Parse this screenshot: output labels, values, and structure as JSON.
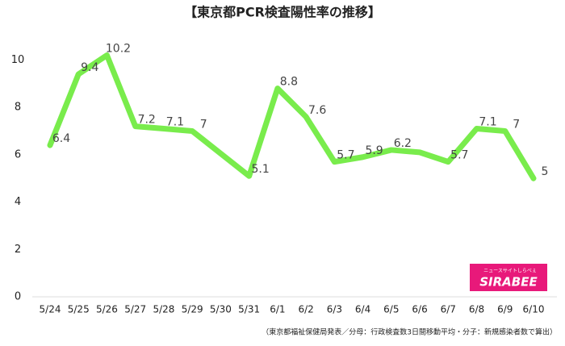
{
  "chart_data": {
    "type": "line",
    "title": "【東京都PCR検査陽性率の推移】",
    "categories": [
      "5/24",
      "5/25",
      "5/26",
      "5/27",
      "5/28",
      "5/29",
      "5/30",
      "5/31",
      "6/1",
      "6/2",
      "6/3",
      "6/4",
      "6/5",
      "6/6",
      "6/7",
      "6/8",
      "6/9",
      "6/10"
    ],
    "series": [
      {
        "name": "PCR検査陽性率",
        "color": "#79ec4c",
        "values": [
          6.4,
          9.4,
          10.2,
          7.2,
          7.1,
          7,
          6.05,
          5.1,
          8.8,
          7.6,
          5.7,
          5.9,
          6.2,
          6.1,
          5.7,
          7.1,
          7,
          5
        ],
        "value_labels": [
          "6.4",
          "9.4",
          "10.2",
          "7.2",
          "7.1",
          "7",
          null,
          "5.1",
          "8.8",
          "7.6",
          "5.7",
          "5.9",
          "6.2",
          null,
          "5.7",
          "7.1",
          "7",
          "5"
        ]
      }
    ],
    "ylim": [
      0,
      11
    ],
    "yticks": [
      0,
      2,
      4,
      6,
      8,
      10
    ],
    "grid": false,
    "source": "（東京都福祉保健局発表／分母：行政検査数3日間移動平均・分子：新規感染者数で算出）",
    "logo": {
      "text": "SIRABEE",
      "subtext": "ニュースサイトしらべぇ"
    }
  }
}
